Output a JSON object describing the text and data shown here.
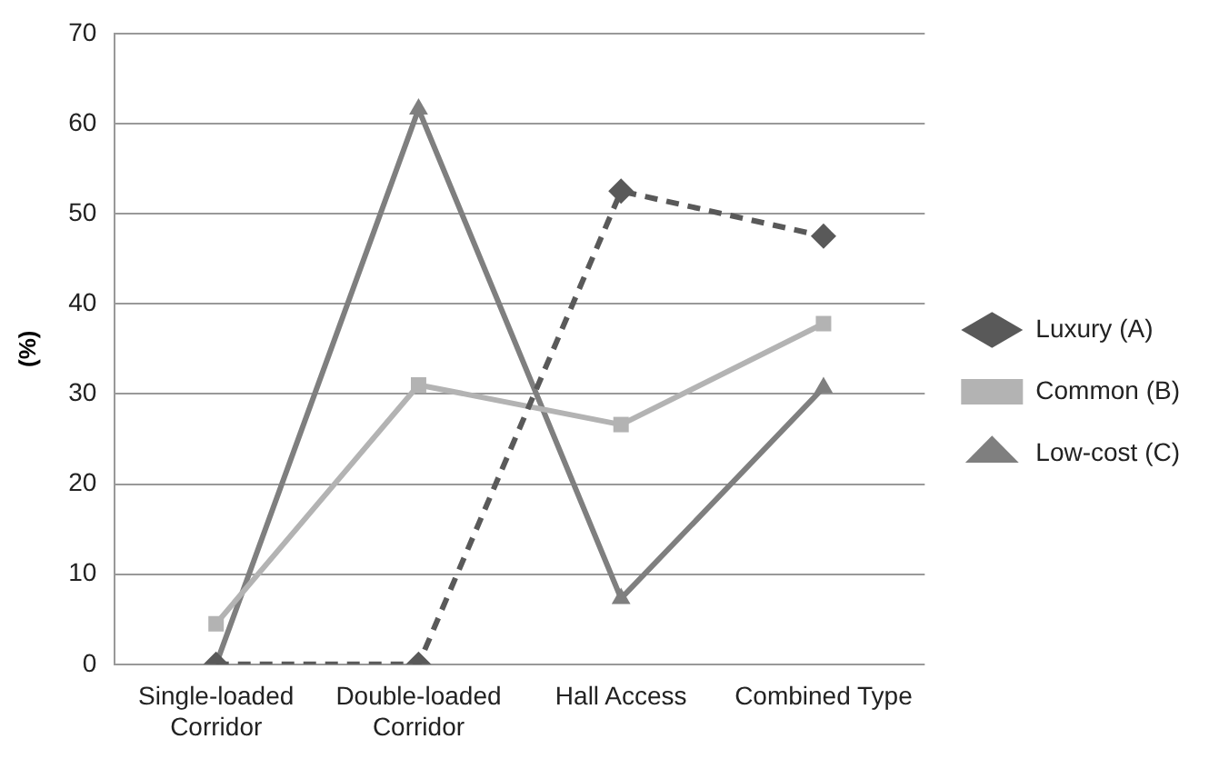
{
  "chart_data": {
    "type": "line",
    "ylabel": "(%)",
    "categories": [
      "Single-loaded Corridor",
      "Double-loaded Corridor",
      "Hall Access",
      "Combined Type"
    ],
    "series": [
      {
        "name": "Luxury (A)",
        "color": "#595959",
        "values": [
          0,
          0,
          52.5,
          47.5
        ],
        "marker": "diamond",
        "line_style": "dashed"
      },
      {
        "name": "Common (B)",
        "color": "#b3b3b3",
        "values": [
          4.5,
          31,
          26.6,
          37.8
        ],
        "marker": "square",
        "line_style": "solid"
      },
      {
        "name": "Low-cost (C)",
        "color": "#7f7f7f",
        "values": [
          0,
          61.6,
          7.3,
          30.7
        ],
        "marker": "triangle",
        "line_style": "solid"
      }
    ],
    "ylim": [
      0,
      70
    ],
    "yticks": [
      0,
      10,
      20,
      30,
      40,
      50,
      60,
      70
    ],
    "grid": "y",
    "legend": "right"
  }
}
